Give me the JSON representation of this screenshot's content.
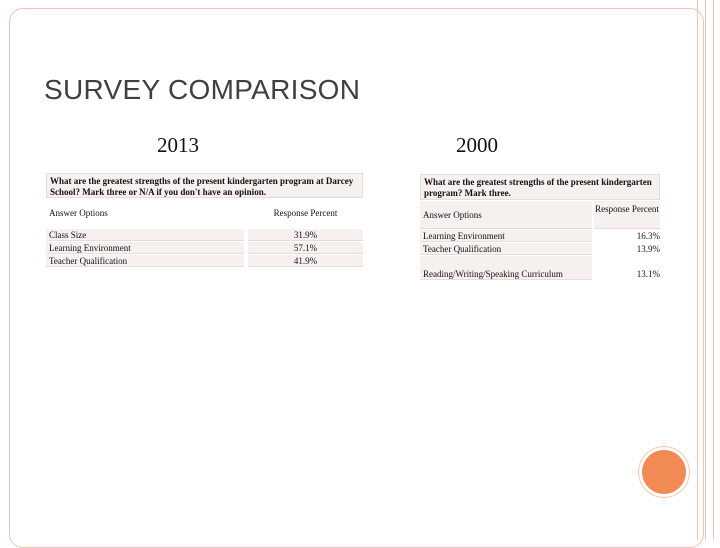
{
  "slide": {
    "title": "SURVEY COMPARISON",
    "accent_color": "#f28a54",
    "border_color": "#f3c3b3"
  },
  "survey_2013": {
    "year": "2013",
    "question": "What are the greatest strengths of the present kindergarten program at Darcey School? Mark three or N/A if you don't have an opinion.",
    "header": {
      "answer": "Answer Options",
      "percent": "Response Percent"
    },
    "rows": [
      {
        "answer": "Class Size",
        "percent": "31.9%"
      },
      {
        "answer": "Learning Environment",
        "percent": "57.1%"
      },
      {
        "answer": "Teacher Qualification",
        "percent": "41.9%"
      }
    ]
  },
  "survey_2000": {
    "year": "2000",
    "question": "What are the greatest strengths of the present kindergarten program? Mark three.",
    "header": {
      "answer": "Answer Options",
      "percent": "Response Percent"
    },
    "rows": [
      {
        "answer": "Learning Environment",
        "percent": "16.3%"
      },
      {
        "answer": "Teacher Qualification",
        "percent": "13.9%"
      },
      {
        "answer": "Reading/Writing/Speaking Curriculum",
        "percent": "13.1%"
      }
    ]
  }
}
